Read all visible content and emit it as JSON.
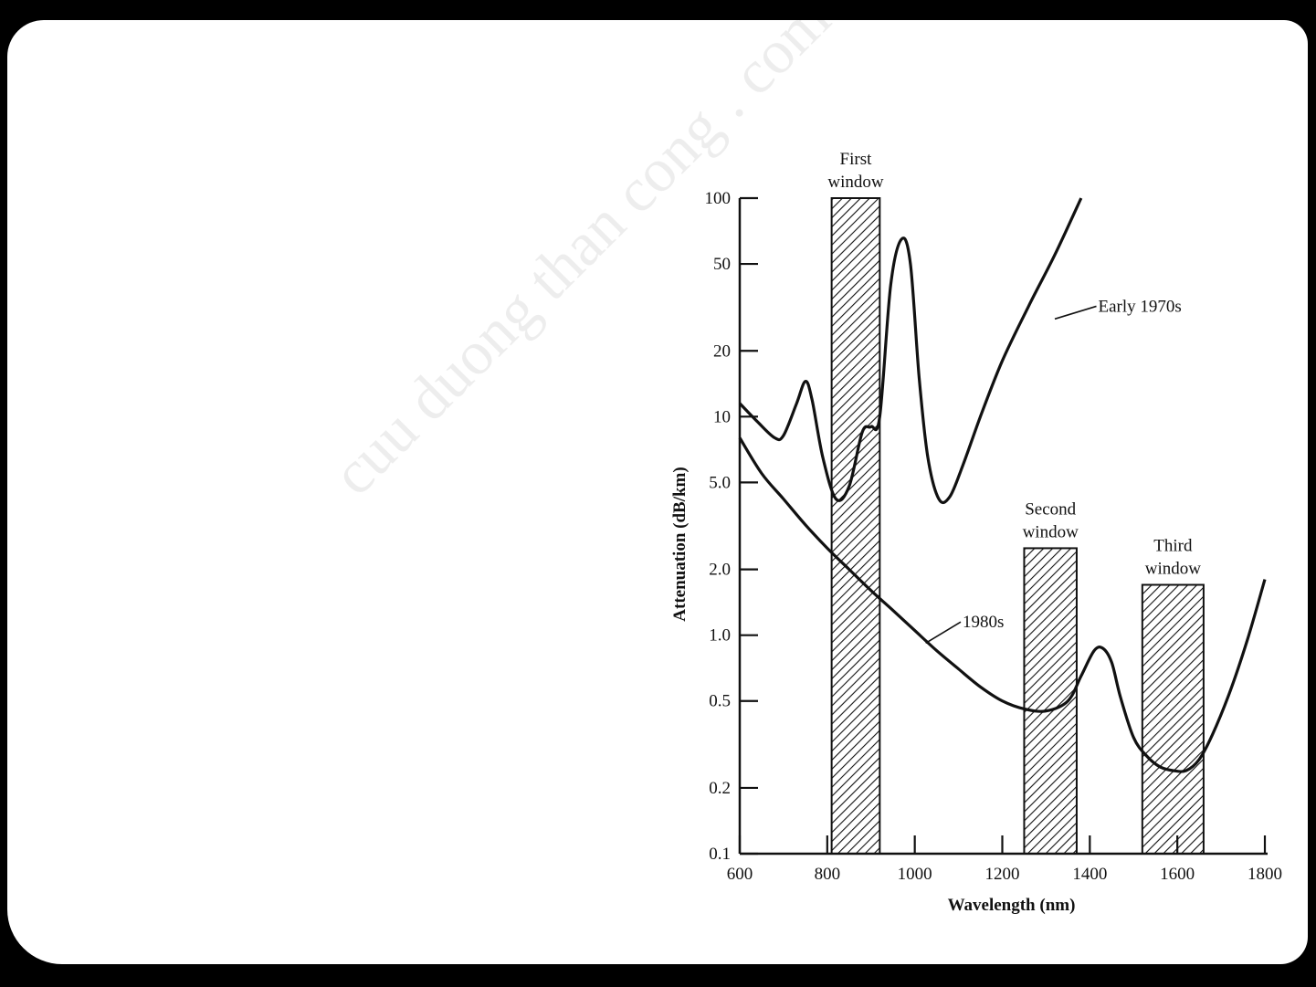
{
  "watermark": "cuu duong than cong . com",
  "chart_data": {
    "type": "line",
    "xlabel": "Wavelength (nm)",
    "ylabel": "Attenuation (dB/km)",
    "y_scale": "log",
    "xlim": [
      600,
      1800
    ],
    "ylim": [
      0.1,
      100
    ],
    "x_ticks": [
      {
        "value": 600,
        "label": "600"
      },
      {
        "value": 800,
        "label": "800"
      },
      {
        "value": 1000,
        "label": "1000"
      },
      {
        "value": 1200,
        "label": "1200"
      },
      {
        "value": 1400,
        "label": "1400"
      },
      {
        "value": 1600,
        "label": "1600"
      },
      {
        "value": 1800,
        "label": "1800"
      }
    ],
    "y_ticks": [
      {
        "value": 100,
        "label": "100"
      },
      {
        "value": 50,
        "label": "50"
      },
      {
        "value": 20,
        "label": "20"
      },
      {
        "value": 10,
        "label": "10"
      },
      {
        "value": 5,
        "label": "5.0"
      },
      {
        "value": 2,
        "label": "2.0"
      },
      {
        "value": 1,
        "label": "1.0"
      },
      {
        "value": 0.5,
        "label": "0.5"
      },
      {
        "value": 0.2,
        "label": "0.2"
      },
      {
        "value": 0.1,
        "label": "0.1"
      }
    ],
    "windows": [
      {
        "label": [
          "First",
          "window"
        ],
        "x_from": 810,
        "x_to": 920,
        "y_top": 100
      },
      {
        "label": [
          "Second",
          "window"
        ],
        "x_from": 1250,
        "x_to": 1370,
        "y_top": 2.5
      },
      {
        "label": [
          "Third",
          "window"
        ],
        "x_from": 1520,
        "x_to": 1660,
        "y_top": 1.7
      }
    ],
    "series": [
      {
        "name": "Early 1970s",
        "points": [
          [
            600,
            11.5
          ],
          [
            640,
            9.5
          ],
          [
            680,
            8.0
          ],
          [
            700,
            8.2
          ],
          [
            730,
            11.5
          ],
          [
            750,
            14.5
          ],
          [
            765,
            12
          ],
          [
            790,
            6.5
          ],
          [
            820,
            4.2
          ],
          [
            850,
            4.8
          ],
          [
            880,
            8.5
          ],
          [
            900,
            9.0
          ],
          [
            920,
            10
          ],
          [
            945,
            40
          ],
          [
            970,
            65
          ],
          [
            990,
            50
          ],
          [
            1010,
            15
          ],
          [
            1030,
            6.5
          ],
          [
            1055,
            4.2
          ],
          [
            1080,
            4.3
          ],
          [
            1110,
            6
          ],
          [
            1150,
            10
          ],
          [
            1200,
            18
          ],
          [
            1260,
            32
          ],
          [
            1320,
            55
          ],
          [
            1380,
            100
          ]
        ]
      },
      {
        "name": "1980s",
        "points": [
          [
            600,
            8.0
          ],
          [
            650,
            5.5
          ],
          [
            700,
            4.2
          ],
          [
            750,
            3.2
          ],
          [
            800,
            2.5
          ],
          [
            850,
            2.0
          ],
          [
            900,
            1.6
          ],
          [
            950,
            1.3
          ],
          [
            1000,
            1.05
          ],
          [
            1050,
            0.85
          ],
          [
            1100,
            0.7
          ],
          [
            1150,
            0.58
          ],
          [
            1200,
            0.5
          ],
          [
            1250,
            0.46
          ],
          [
            1300,
            0.45
          ],
          [
            1350,
            0.5
          ],
          [
            1380,
            0.65
          ],
          [
            1410,
            0.85
          ],
          [
            1430,
            0.87
          ],
          [
            1450,
            0.75
          ],
          [
            1470,
            0.52
          ],
          [
            1500,
            0.34
          ],
          [
            1530,
            0.28
          ],
          [
            1560,
            0.25
          ],
          [
            1590,
            0.24
          ],
          [
            1620,
            0.24
          ],
          [
            1650,
            0.27
          ],
          [
            1680,
            0.35
          ],
          [
            1720,
            0.55
          ],
          [
            1760,
            0.95
          ],
          [
            1800,
            1.8
          ]
        ]
      }
    ],
    "annotations": [
      {
        "text": "Early 1970s",
        "x": 1415,
        "y": 32,
        "points_to": [
          1320,
          28
        ]
      },
      {
        "text": "1980s",
        "x": 1105,
        "y": 1.15,
        "points_to": [
          1025,
          0.92
        ]
      }
    ]
  }
}
